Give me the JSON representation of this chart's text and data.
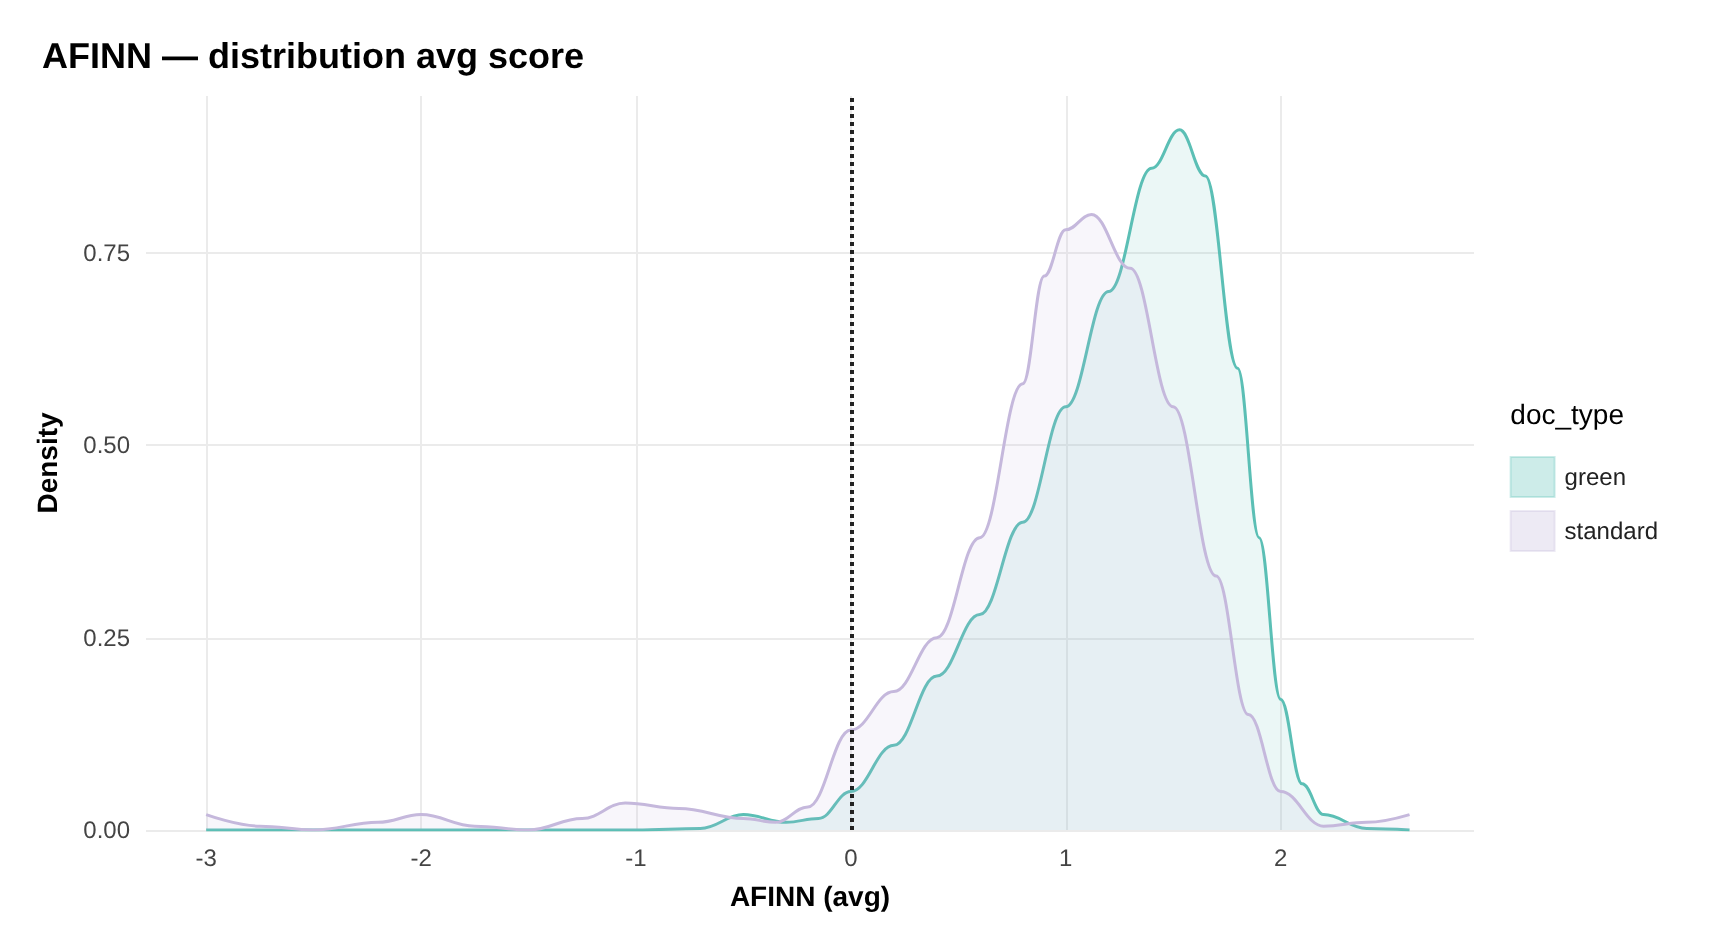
{
  "chart_data": {
    "type": "area",
    "title": "AFINN — distribution avg score",
    "xlabel": "AFINN (avg)",
    "ylabel": "Density",
    "legend_title": "doc_type",
    "series": [
      {
        "name": "green",
        "color": "#5bbfb5",
        "x": [
          -3,
          -1,
          -0.7,
          -0.5,
          -0.3,
          -0.15,
          0,
          0.2,
          0.4,
          0.6,
          0.8,
          1.0,
          1.2,
          1.4,
          1.53,
          1.65,
          1.8,
          1.9,
          2.0,
          2.1,
          2.2,
          2.4,
          2.6
        ],
        "values": [
          0,
          0,
          0.002,
          0.02,
          0.01,
          0.015,
          0.05,
          0.11,
          0.2,
          0.28,
          0.4,
          0.55,
          0.7,
          0.86,
          0.91,
          0.85,
          0.6,
          0.38,
          0.17,
          0.06,
          0.02,
          0.002,
          0
        ]
      },
      {
        "name": "standard",
        "color": "#c5b8dc",
        "x": [
          -3,
          -2.75,
          -2.5,
          -2.2,
          -2.0,
          -1.75,
          -1.5,
          -1.25,
          -1.05,
          -0.8,
          -0.5,
          -0.35,
          -0.2,
          0,
          0.2,
          0.4,
          0.6,
          0.8,
          0.9,
          1.0,
          1.12,
          1.3,
          1.5,
          1.7,
          1.85,
          2.0,
          2.2,
          2.4,
          2.6
        ],
        "values": [
          0.02,
          0.005,
          0,
          0.01,
          0.02,
          0.005,
          0,
          0.015,
          0.035,
          0.028,
          0.015,
          0.01,
          0.03,
          0.13,
          0.18,
          0.25,
          0.38,
          0.58,
          0.72,
          0.78,
          0.8,
          0.73,
          0.55,
          0.33,
          0.15,
          0.05,
          0.005,
          0.01,
          0.02
        ]
      }
    ],
    "xlim": [
      -3.28,
      2.9
    ],
    "xticks": [
      -3,
      -2,
      -1,
      0,
      1,
      2
    ],
    "ylim": [
      0,
      0.954
    ],
    "yticks": [
      {
        "value": 0,
        "label": "0.00"
      },
      {
        "value": 0.25,
        "label": "0.25"
      },
      {
        "value": 0.5,
        "label": "0.50"
      },
      {
        "value": 0.75,
        "label": "0.75"
      }
    ],
    "ref_lines": [
      {
        "axis": "x",
        "value": 0,
        "label": null,
        "color": "#222222",
        "line_style": "dotted"
      }
    ],
    "grid": true,
    "legend": "right",
    "marker": "none"
  }
}
